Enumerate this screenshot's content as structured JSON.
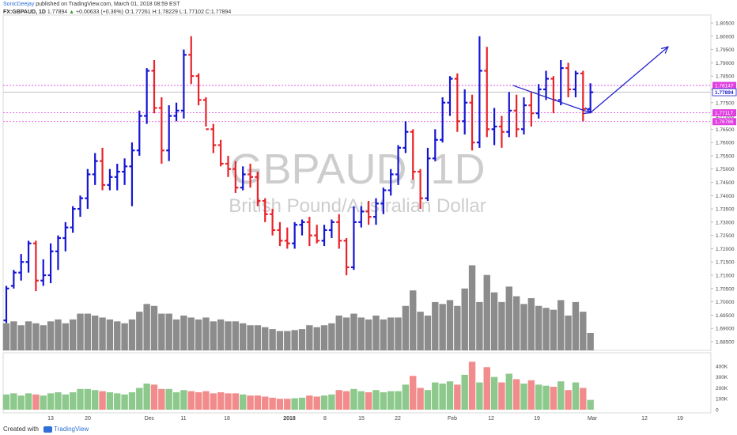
{
  "header": {
    "user": "SonicDeejay",
    "published": "published on TradingView.com, March 01, 2018 08:59 EST",
    "symbol": "FX:GBPAUD, 1D",
    "last": "1.77894",
    "change": "+0.00633 (+0.36%)",
    "ohlc": "O:1.77261 H:1.78229 L:1.77102 C:1.77894"
  },
  "watermark": {
    "symbol": "GBPAUD, 1D",
    "name": "British Pound/Australian Dollar"
  },
  "footer": {
    "created_with": "Created with",
    "brand": "TradingView"
  },
  "colors": {
    "up": "#1515d4",
    "down": "#e8232a",
    "volume": "#8c8c8c",
    "vol_up": "#8dc98d",
    "vol_down": "#f28b8b",
    "level_line": "#e040e0",
    "annotation": "#2222cc",
    "watermark": "#bdbdbd",
    "last_price_label": "#1a1ad0"
  },
  "chart_data": {
    "type": "ohlc",
    "x_labels": [
      "13",
      "20",
      "Dec",
      "11",
      "18",
      "2018",
      "8",
      "15",
      "22",
      "Feb",
      "12",
      "19",
      "Mar",
      "12",
      "19"
    ],
    "y_ticks": [
      "1.80500",
      "1.80000",
      "1.79500",
      "1.79000",
      "1.78500",
      "1.78000",
      "1.77500",
      "1.77000",
      "1.76500",
      "1.76000",
      "1.75500",
      "1.75000",
      "1.74500",
      "1.74000",
      "1.73500",
      "1.73000",
      "1.72500",
      "1.72000",
      "1.71500",
      "1.71000",
      "1.70500",
      "1.70000",
      "1.69500",
      "1.69000",
      "1.68500"
    ],
    "ylim": [
      1.6835,
      1.8065
    ],
    "price_labels": [
      {
        "text": "1.78147",
        "value": 1.78147,
        "kind": "level"
      },
      {
        "text": "1.77894",
        "value": 1.77894,
        "kind": "last"
      },
      {
        "text": "1.77117",
        "value": 1.77117,
        "kind": "level"
      },
      {
        "text": "1.76786",
        "value": 1.76786,
        "kind": "level"
      }
    ],
    "levels": [
      1.78147,
      1.77117,
      1.76786
    ],
    "last_price": 1.77894,
    "projection": [
      {
        "x": 68.5,
        "y": 1.7815
      },
      {
        "x": 79,
        "y": 1.7712
      },
      {
        "x": 89.5,
        "y": 1.796
      }
    ],
    "volume_ticks": [
      "400K",
      "300K",
      "200K",
      "100K",
      "0"
    ],
    "volume_max": 450000,
    "bars": [
      {
        "o": 1.693,
        "h": 1.706,
        "l": 1.692,
        "c": 1.705,
        "v": 140000
      },
      {
        "o": 1.706,
        "h": 1.712,
        "l": 1.705,
        "c": 1.711,
        "v": 150000
      },
      {
        "o": 1.711,
        "h": 1.718,
        "l": 1.708,
        "c": 1.715,
        "v": 130000
      },
      {
        "o": 1.715,
        "h": 1.723,
        "l": 1.711,
        "c": 1.722,
        "v": 150000
      },
      {
        "o": 1.722,
        "h": 1.723,
        "l": 1.704,
        "c": 1.708,
        "v": 140000
      },
      {
        "o": 1.708,
        "h": 1.716,
        "l": 1.706,
        "c": 1.71,
        "v": 130000
      },
      {
        "o": 1.71,
        "h": 1.722,
        "l": 1.707,
        "c": 1.719,
        "v": 150000
      },
      {
        "o": 1.719,
        "h": 1.725,
        "l": 1.712,
        "c": 1.724,
        "v": 160000
      },
      {
        "o": 1.724,
        "h": 1.73,
        "l": 1.719,
        "c": 1.728,
        "v": 140000
      },
      {
        "o": 1.728,
        "h": 1.736,
        "l": 1.726,
        "c": 1.735,
        "v": 160000
      },
      {
        "o": 1.735,
        "h": 1.74,
        "l": 1.732,
        "c": 1.739,
        "v": 190000
      },
      {
        "o": 1.739,
        "h": 1.75,
        "l": 1.735,
        "c": 1.748,
        "v": 190000
      },
      {
        "o": 1.748,
        "h": 1.756,
        "l": 1.744,
        "c": 1.753,
        "v": 180000
      },
      {
        "o": 1.753,
        "h": 1.758,
        "l": 1.742,
        "c": 1.744,
        "v": 170000
      },
      {
        "o": 1.744,
        "h": 1.75,
        "l": 1.742,
        "c": 1.747,
        "v": 160000
      },
      {
        "o": 1.747,
        "h": 1.752,
        "l": 1.742,
        "c": 1.749,
        "v": 150000
      },
      {
        "o": 1.749,
        "h": 1.754,
        "l": 1.744,
        "c": 1.751,
        "v": 140000
      },
      {
        "o": 1.751,
        "h": 1.76,
        "l": 1.736,
        "c": 1.757,
        "v": 160000
      },
      {
        "o": 1.757,
        "h": 1.772,
        "l": 1.755,
        "c": 1.77,
        "v": 200000
      },
      {
        "o": 1.77,
        "h": 1.788,
        "l": 1.767,
        "c": 1.787,
        "v": 240000
      },
      {
        "o": 1.787,
        "h": 1.791,
        "l": 1.771,
        "c": 1.773,
        "v": 230000
      },
      {
        "o": 1.773,
        "h": 1.777,
        "l": 1.752,
        "c": 1.757,
        "v": 190000
      },
      {
        "o": 1.757,
        "h": 1.774,
        "l": 1.753,
        "c": 1.77,
        "v": 190000
      },
      {
        "o": 1.77,
        "h": 1.775,
        "l": 1.768,
        "c": 1.772,
        "v": 160000
      },
      {
        "o": 1.772,
        "h": 1.795,
        "l": 1.769,
        "c": 1.793,
        "v": 180000
      },
      {
        "o": 1.793,
        "h": 1.8,
        "l": 1.782,
        "c": 1.785,
        "v": 170000
      },
      {
        "o": 1.785,
        "h": 1.786,
        "l": 1.774,
        "c": 1.776,
        "v": 160000
      },
      {
        "o": 1.776,
        "h": 1.777,
        "l": 1.766,
        "c": 1.765,
        "v": 170000
      },
      {
        "o": 1.765,
        "h": 1.767,
        "l": 1.756,
        "c": 1.759,
        "v": 150000
      },
      {
        "o": 1.759,
        "h": 1.761,
        "l": 1.751,
        "c": 1.752,
        "v": 160000
      },
      {
        "o": 1.752,
        "h": 1.755,
        "l": 1.747,
        "c": 1.75,
        "v": 150000
      },
      {
        "o": 1.75,
        "h": 1.753,
        "l": 1.741,
        "c": 1.743,
        "v": 150000
      },
      {
        "o": 1.743,
        "h": 1.751,
        "l": 1.742,
        "c": 1.748,
        "v": 140000
      },
      {
        "o": 1.748,
        "h": 1.752,
        "l": 1.743,
        "c": 1.747,
        "v": 130000
      },
      {
        "o": 1.747,
        "h": 1.749,
        "l": 1.736,
        "c": 1.738,
        "v": 130000
      },
      {
        "o": 1.738,
        "h": 1.739,
        "l": 1.73,
        "c": 1.733,
        "v": 120000
      },
      {
        "o": 1.733,
        "h": 1.735,
        "l": 1.725,
        "c": 1.727,
        "v": 110000
      },
      {
        "o": 1.727,
        "h": 1.73,
        "l": 1.721,
        "c": 1.723,
        "v": 100000
      },
      {
        "o": 1.723,
        "h": 1.728,
        "l": 1.72,
        "c": 1.722,
        "v": 100000
      },
      {
        "o": 1.722,
        "h": 1.73,
        "l": 1.72,
        "c": 1.729,
        "v": 105000
      },
      {
        "o": 1.729,
        "h": 1.731,
        "l": 1.725,
        "c": 1.73,
        "v": 110000
      },
      {
        "o": 1.73,
        "h": 1.732,
        "l": 1.721,
        "c": 1.725,
        "v": 130000
      },
      {
        "o": 1.725,
        "h": 1.729,
        "l": 1.722,
        "c": 1.723,
        "v": 120000
      },
      {
        "o": 1.723,
        "h": 1.729,
        "l": 1.721,
        "c": 1.727,
        "v": 130000
      },
      {
        "o": 1.727,
        "h": 1.731,
        "l": 1.724,
        "c": 1.73,
        "v": 140000
      },
      {
        "o": 1.73,
        "h": 1.733,
        "l": 1.72,
        "c": 1.723,
        "v": 180000
      },
      {
        "o": 1.723,
        "h": 1.724,
        "l": 1.71,
        "c": 1.713,
        "v": 170000
      },
      {
        "o": 1.713,
        "h": 1.736,
        "l": 1.712,
        "c": 1.73,
        "v": 190000
      },
      {
        "o": 1.73,
        "h": 1.736,
        "l": 1.728,
        "c": 1.734,
        "v": 170000
      },
      {
        "o": 1.734,
        "h": 1.738,
        "l": 1.729,
        "c": 1.732,
        "v": 160000
      },
      {
        "o": 1.732,
        "h": 1.739,
        "l": 1.729,
        "c": 1.737,
        "v": 180000
      },
      {
        "o": 1.737,
        "h": 1.743,
        "l": 1.733,
        "c": 1.742,
        "v": 160000
      },
      {
        "o": 1.742,
        "h": 1.75,
        "l": 1.74,
        "c": 1.748,
        "v": 170000
      },
      {
        "o": 1.748,
        "h": 1.759,
        "l": 1.744,
        "c": 1.758,
        "v": 170000
      },
      {
        "o": 1.758,
        "h": 1.768,
        "l": 1.756,
        "c": 1.764,
        "v": 230000
      },
      {
        "o": 1.764,
        "h": 1.765,
        "l": 1.746,
        "c": 1.749,
        "v": 310000
      },
      {
        "o": 1.749,
        "h": 1.75,
        "l": 1.735,
        "c": 1.739,
        "v": 200000
      },
      {
        "o": 1.739,
        "h": 1.758,
        "l": 1.738,
        "c": 1.754,
        "v": 180000
      },
      {
        "o": 1.754,
        "h": 1.765,
        "l": 1.753,
        "c": 1.761,
        "v": 250000
      },
      {
        "o": 1.761,
        "h": 1.777,
        "l": 1.76,
        "c": 1.775,
        "v": 240000
      },
      {
        "o": 1.775,
        "h": 1.785,
        "l": 1.77,
        "c": 1.784,
        "v": 260000
      },
      {
        "o": 1.784,
        "h": 1.786,
        "l": 1.764,
        "c": 1.768,
        "v": 230000
      },
      {
        "o": 1.768,
        "h": 1.78,
        "l": 1.763,
        "c": 1.775,
        "v": 320000
      },
      {
        "o": 1.775,
        "h": 1.778,
        "l": 1.757,
        "c": 1.76,
        "v": 440000
      },
      {
        "o": 1.76,
        "h": 1.8,
        "l": 1.758,
        "c": 1.787,
        "v": 250000
      },
      {
        "o": 1.787,
        "h": 1.796,
        "l": 1.762,
        "c": 1.765,
        "v": 390000
      },
      {
        "o": 1.765,
        "h": 1.773,
        "l": 1.759,
        "c": 1.766,
        "v": 300000
      },
      {
        "o": 1.766,
        "h": 1.77,
        "l": 1.758,
        "c": 1.764,
        "v": 250000
      },
      {
        "o": 1.764,
        "h": 1.779,
        "l": 1.762,
        "c": 1.772,
        "v": 330000
      },
      {
        "o": 1.772,
        "h": 1.778,
        "l": 1.762,
        "c": 1.765,
        "v": 280000
      },
      {
        "o": 1.765,
        "h": 1.777,
        "l": 1.763,
        "c": 1.774,
        "v": 240000
      },
      {
        "o": 1.774,
        "h": 1.779,
        "l": 1.766,
        "c": 1.771,
        "v": 270000
      },
      {
        "o": 1.771,
        "h": 1.782,
        "l": 1.769,
        "c": 1.78,
        "v": 230000
      },
      {
        "o": 1.78,
        "h": 1.787,
        "l": 1.776,
        "c": 1.784,
        "v": 220000
      },
      {
        "o": 1.784,
        "h": 1.785,
        "l": 1.771,
        "c": 1.776,
        "v": 210000
      },
      {
        "o": 1.776,
        "h": 1.791,
        "l": 1.774,
        "c": 1.788,
        "v": 260000
      },
      {
        "o": 1.788,
        "h": 1.79,
        "l": 1.777,
        "c": 1.78,
        "v": 180000
      },
      {
        "o": 1.78,
        "h": 1.787,
        "l": 1.777,
        "c": 1.786,
        "v": 250000
      },
      {
        "o": 1.786,
        "h": 1.787,
        "l": 1.768,
        "c": 1.7726,
        "v": 200000
      },
      {
        "o": 1.7726,
        "h": 1.7823,
        "l": 1.771,
        "c": 1.7789,
        "v": 90000
      }
    ]
  }
}
